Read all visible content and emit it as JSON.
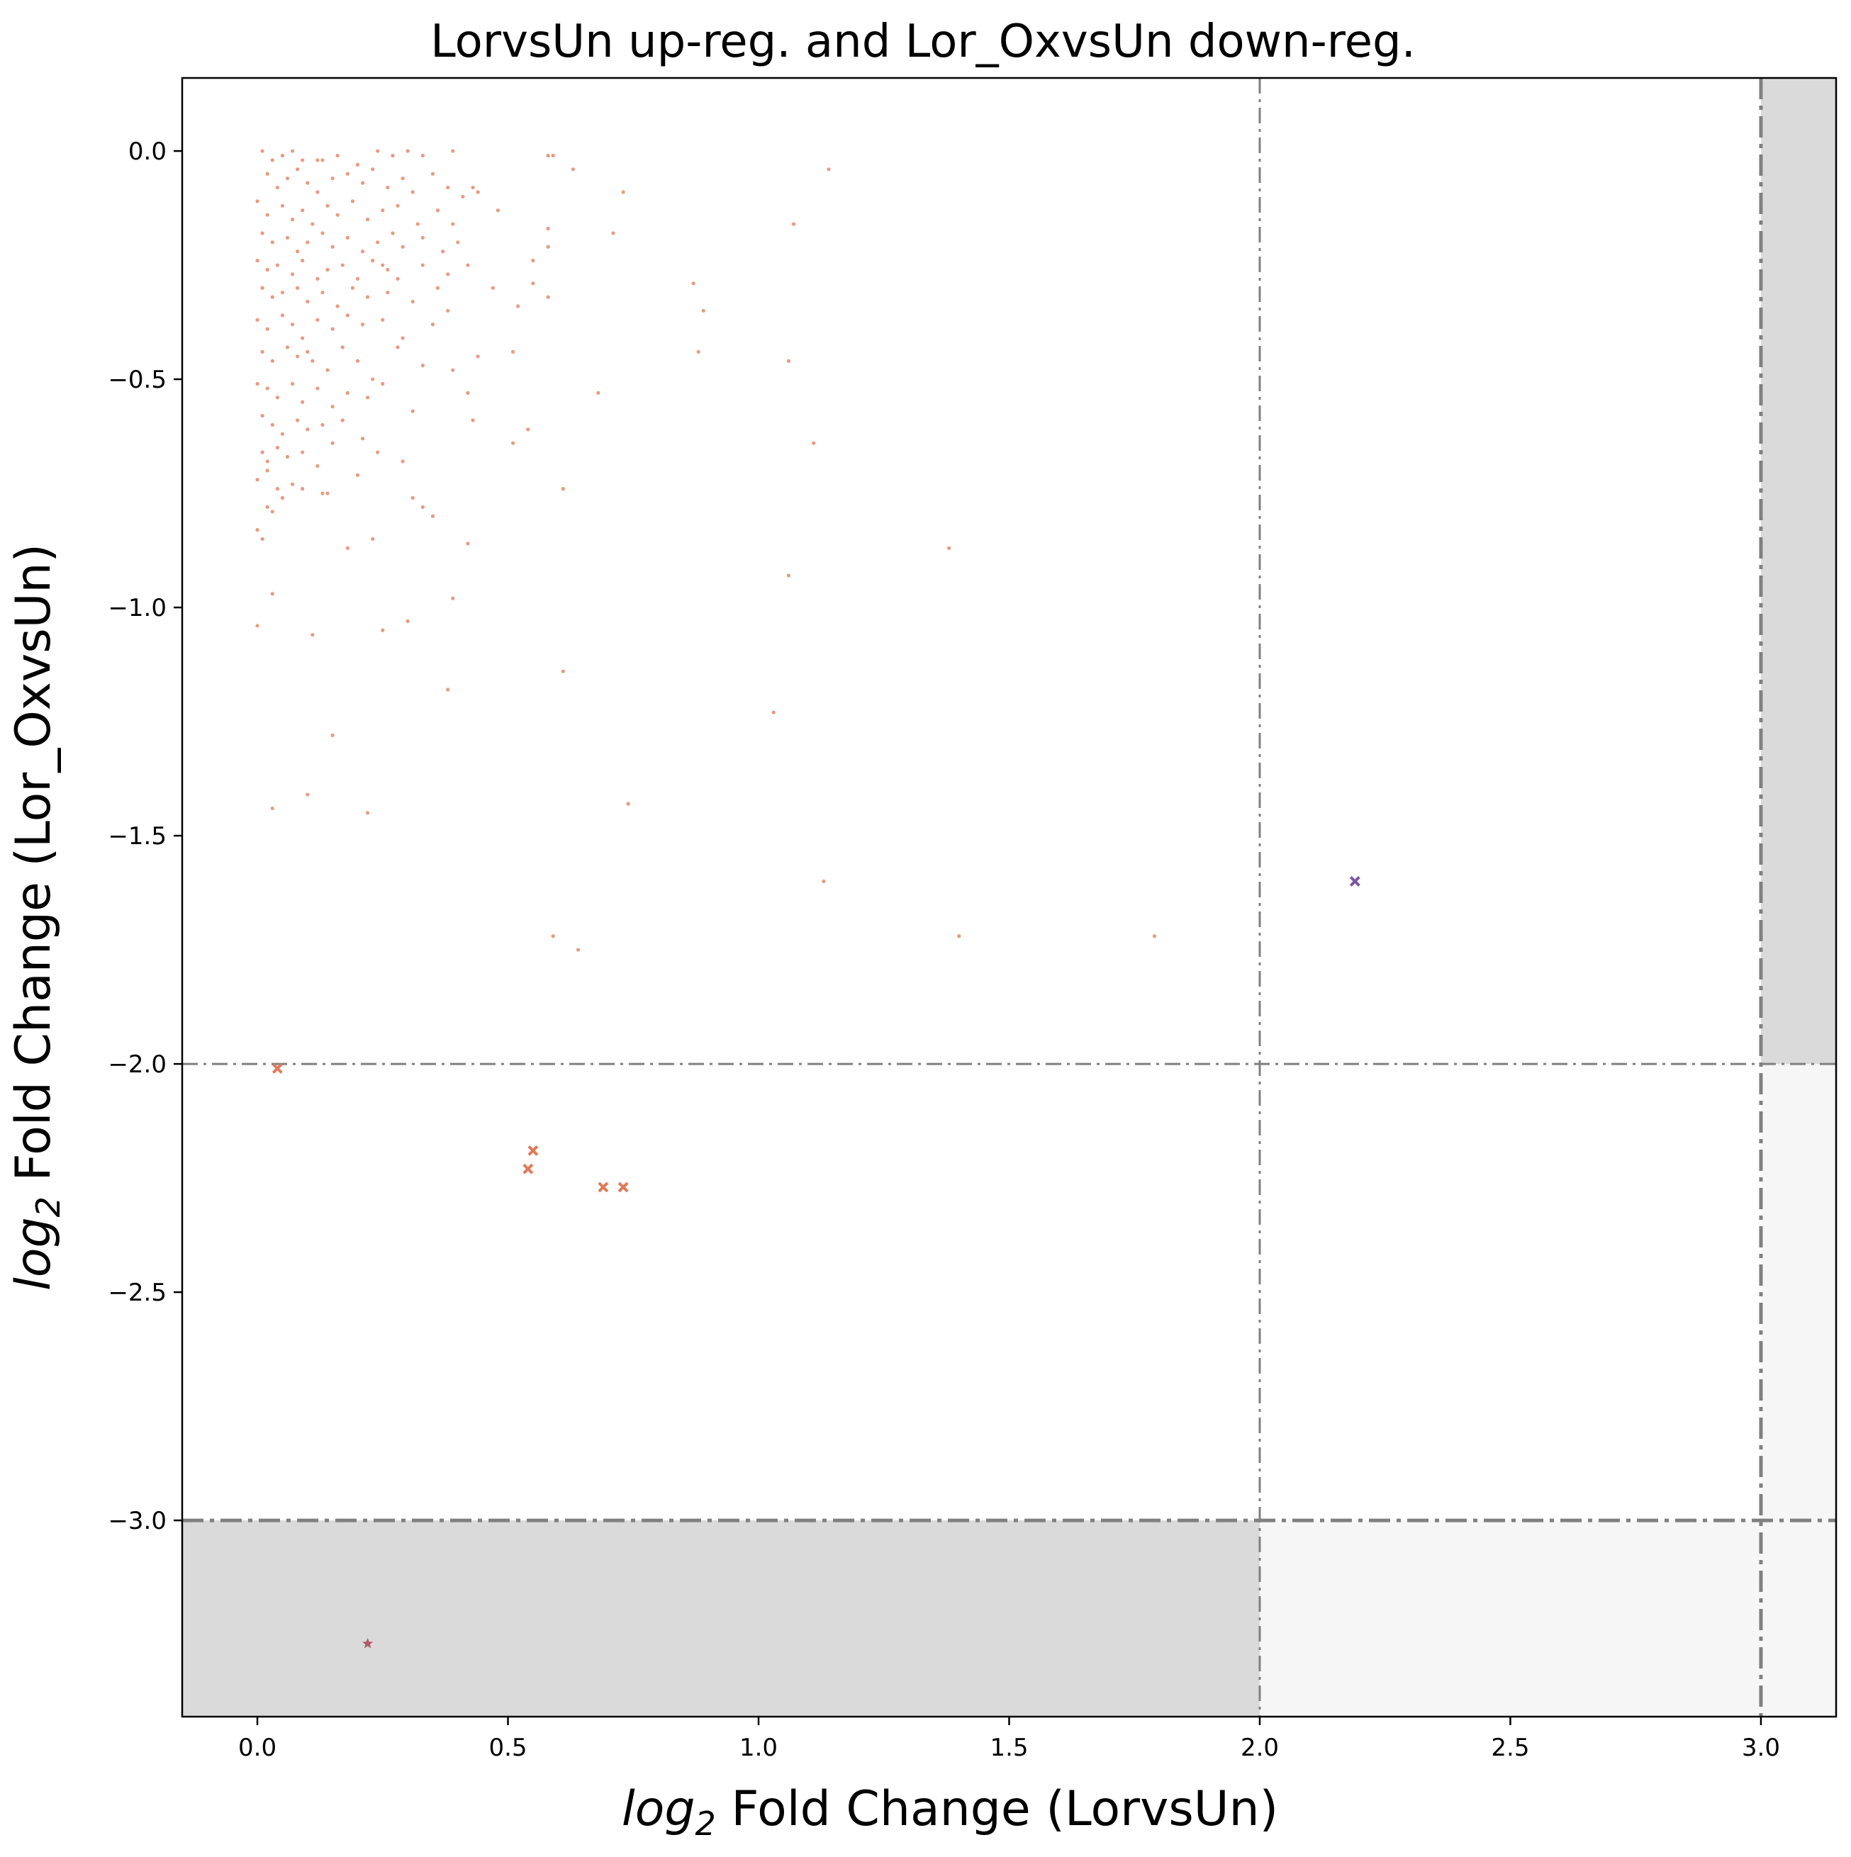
{
  "chart_data": {
    "type": "scatter",
    "title": "LorvsUn up-reg. and Lor_OxvsUn down-reg.",
    "xlabel": {
      "prefix": "log",
      "sub": "2",
      "suffix": " Fold Change (LorvsUn)"
    },
    "ylabel": {
      "prefix": "log",
      "sub": "2",
      "suffix": " Fold Change (Lor_OxvsUn)"
    },
    "xlim": [
      -0.15,
      3.15
    ],
    "ylim": [
      -3.43,
      0.16
    ],
    "xticks": [
      0.0,
      0.5,
      1.0,
      1.5,
      2.0,
      2.5,
      3.0
    ],
    "xtick_labels": [
      "0.0",
      "0.5",
      "1.0",
      "1.5",
      "2.0",
      "2.5",
      "3.0"
    ],
    "yticks": [
      0.0,
      -0.5,
      -1.0,
      -1.5,
      -2.0,
      -2.5,
      -3.0
    ],
    "ytick_labels": [
      "0.0",
      "−0.5",
      "−1.0",
      "−1.5",
      "−2.0",
      "−2.5",
      "−3.0"
    ],
    "grid": false,
    "legend": "none",
    "shaded_regions": [
      {
        "x": [
          -0.15,
          2.0
        ],
        "y": [
          -3.43,
          -3.0
        ],
        "color": "#dadada"
      },
      {
        "x": [
          2.0,
          3.0
        ],
        "y": [
          -3.43,
          -3.0
        ],
        "color": "#f6f6f6"
      },
      {
        "x": [
          3.0,
          3.15
        ],
        "y": [
          -3.43,
          -2.0
        ],
        "color": "#f6f6f6"
      },
      {
        "x": [
          3.0,
          3.15
        ],
        "y": [
          -2.0,
          0.16
        ],
        "color": "#dadada"
      }
    ],
    "threshold_lines": [
      {
        "orientation": "vertical",
        "value": 2.0,
        "style": "thin"
      },
      {
        "orientation": "vertical",
        "value": 3.0,
        "style": "thick"
      },
      {
        "orientation": "horizontal",
        "value": -2.0,
        "style": "thin"
      },
      {
        "orientation": "horizontal",
        "value": -3.0,
        "style": "thick"
      }
    ],
    "line_color": "#808080",
    "series": [
      {
        "marker": "dot",
        "color": "#e28a6c",
        "points": [
          [
            0.01,
            0.0
          ],
          [
            0.03,
            -0.02
          ],
          [
            0.05,
            -0.01
          ],
          [
            0.07,
            0.0
          ],
          [
            0.09,
            -0.02
          ],
          [
            0.12,
            -0.02
          ],
          [
            0.13,
            -0.02
          ],
          [
            0.16,
            -0.01
          ],
          [
            0.2,
            -0.03
          ],
          [
            0.24,
            0.0
          ],
          [
            0.27,
            -0.01
          ],
          [
            0.3,
            0.0
          ],
          [
            0.33,
            -0.01
          ],
          [
            0.39,
            0.0
          ],
          [
            0.58,
            -0.01
          ],
          [
            0.59,
            -0.01
          ],
          [
            0.63,
            -0.04
          ],
          [
            1.14,
            -0.04
          ],
          [
            0.02,
            -0.05
          ],
          [
            0.04,
            -0.08
          ],
          [
            0.06,
            -0.06
          ],
          [
            0.08,
            -0.04
          ],
          [
            0.1,
            -0.07
          ],
          [
            0.12,
            -0.09
          ],
          [
            0.15,
            -0.06
          ],
          [
            0.18,
            -0.05
          ],
          [
            0.21,
            -0.07
          ],
          [
            0.23,
            -0.04
          ],
          [
            0.26,
            -0.08
          ],
          [
            0.29,
            -0.06
          ],
          [
            0.31,
            -0.09
          ],
          [
            0.35,
            -0.05
          ],
          [
            0.38,
            -0.08
          ],
          [
            0.41,
            -0.1
          ],
          [
            0.43,
            -0.08
          ],
          [
            0.44,
            -0.09
          ],
          [
            0.73,
            -0.09
          ],
          [
            0.0,
            -0.11
          ],
          [
            0.02,
            -0.14
          ],
          [
            0.05,
            -0.12
          ],
          [
            0.07,
            -0.15
          ],
          [
            0.09,
            -0.13
          ],
          [
            0.11,
            -0.16
          ],
          [
            0.14,
            -0.12
          ],
          [
            0.16,
            -0.14
          ],
          [
            0.19,
            -0.11
          ],
          [
            0.22,
            -0.15
          ],
          [
            0.25,
            -0.13
          ],
          [
            0.28,
            -0.12
          ],
          [
            0.32,
            -0.16
          ],
          [
            0.36,
            -0.13
          ],
          [
            0.39,
            -0.16
          ],
          [
            0.48,
            -0.13
          ],
          [
            0.58,
            -0.17
          ],
          [
            1.07,
            -0.16
          ],
          [
            0.01,
            -0.18
          ],
          [
            0.03,
            -0.2
          ],
          [
            0.06,
            -0.19
          ],
          [
            0.08,
            -0.22
          ],
          [
            0.1,
            -0.2
          ],
          [
            0.13,
            -0.18
          ],
          [
            0.15,
            -0.21
          ],
          [
            0.18,
            -0.19
          ],
          [
            0.21,
            -0.22
          ],
          [
            0.24,
            -0.2
          ],
          [
            0.27,
            -0.18
          ],
          [
            0.29,
            -0.21
          ],
          [
            0.33,
            -0.19
          ],
          [
            0.37,
            -0.22
          ],
          [
            0.4,
            -0.2
          ],
          [
            0.58,
            -0.21
          ],
          [
            0.71,
            -0.18
          ],
          [
            0.0,
            -0.24
          ],
          [
            0.02,
            -0.26
          ],
          [
            0.04,
            -0.25
          ],
          [
            0.07,
            -0.27
          ],
          [
            0.09,
            -0.24
          ],
          [
            0.12,
            -0.28
          ],
          [
            0.14,
            -0.26
          ],
          [
            0.17,
            -0.25
          ],
          [
            0.2,
            -0.28
          ],
          [
            0.23,
            -0.24
          ],
          [
            0.25,
            -0.25
          ],
          [
            0.26,
            -0.26
          ],
          [
            0.28,
            -0.28
          ],
          [
            0.33,
            -0.25
          ],
          [
            0.38,
            -0.27
          ],
          [
            0.42,
            -0.25
          ],
          [
            0.55,
            -0.24
          ],
          [
            0.01,
            -0.3
          ],
          [
            0.03,
            -0.32
          ],
          [
            0.05,
            -0.31
          ],
          [
            0.08,
            -0.3
          ],
          [
            0.1,
            -0.33
          ],
          [
            0.13,
            -0.31
          ],
          [
            0.16,
            -0.34
          ],
          [
            0.19,
            -0.3
          ],
          [
            0.22,
            -0.32
          ],
          [
            0.26,
            -0.31
          ],
          [
            0.31,
            -0.33
          ],
          [
            0.36,
            -0.3
          ],
          [
            0.47,
            -0.3
          ],
          [
            0.55,
            -0.29
          ],
          [
            0.58,
            -0.32
          ],
          [
            0.87,
            -0.29
          ],
          [
            0.89,
            -0.35
          ],
          [
            0.0,
            -0.37
          ],
          [
            0.02,
            -0.39
          ],
          [
            0.05,
            -0.36
          ],
          [
            0.07,
            -0.38
          ],
          [
            0.09,
            -0.41
          ],
          [
            0.12,
            -0.37
          ],
          [
            0.15,
            -0.39
          ],
          [
            0.18,
            -0.36
          ],
          [
            0.21,
            -0.38
          ],
          [
            0.25,
            -0.37
          ],
          [
            0.29,
            -0.41
          ],
          [
            0.35,
            -0.38
          ],
          [
            0.38,
            -0.35
          ],
          [
            0.52,
            -0.34
          ],
          [
            0.88,
            -0.44
          ],
          [
            0.01,
            -0.44
          ],
          [
            0.03,
            -0.46
          ],
          [
            0.06,
            -0.43
          ],
          [
            0.08,
            -0.45
          ],
          [
            0.1,
            -0.44
          ],
          [
            0.11,
            -0.46
          ],
          [
            0.14,
            -0.48
          ],
          [
            0.17,
            -0.43
          ],
          [
            0.2,
            -0.46
          ],
          [
            0.23,
            -0.5
          ],
          [
            0.28,
            -0.43
          ],
          [
            0.33,
            -0.47
          ],
          [
            0.39,
            -0.48
          ],
          [
            0.44,
            -0.45
          ],
          [
            0.51,
            -0.44
          ],
          [
            1.06,
            -0.46
          ],
          [
            0.0,
            -0.51
          ],
          [
            0.02,
            -0.52
          ],
          [
            0.04,
            -0.54
          ],
          [
            0.07,
            -0.51
          ],
          [
            0.09,
            -0.55
          ],
          [
            0.12,
            -0.52
          ],
          [
            0.15,
            -0.56
          ],
          [
            0.18,
            -0.53
          ],
          [
            0.22,
            -0.54
          ],
          [
            0.25,
            -0.51
          ],
          [
            0.31,
            -0.57
          ],
          [
            0.42,
            -0.53
          ],
          [
            0.68,
            -0.53
          ],
          [
            0.01,
            -0.58
          ],
          [
            0.03,
            -0.6
          ],
          [
            0.05,
            -0.62
          ],
          [
            0.08,
            -0.59
          ],
          [
            0.1,
            -0.61
          ],
          [
            0.13,
            -0.6
          ],
          [
            0.17,
            -0.59
          ],
          [
            0.21,
            -0.63
          ],
          [
            0.43,
            -0.59
          ],
          [
            0.54,
            -0.61
          ],
          [
            0.51,
            -0.64
          ],
          [
            0.01,
            -0.66
          ],
          [
            0.02,
            -0.68
          ],
          [
            0.04,
            -0.65
          ],
          [
            0.06,
            -0.67
          ],
          [
            0.09,
            -0.66
          ],
          [
            0.12,
            -0.69
          ],
          [
            0.15,
            -0.64
          ],
          [
            0.24,
            -0.66
          ],
          [
            0.29,
            -0.68
          ],
          [
            1.11,
            -0.64
          ],
          [
            0.0,
            -0.72
          ],
          [
            0.02,
            -0.7
          ],
          [
            0.04,
            -0.74
          ],
          [
            0.05,
            -0.76
          ],
          [
            0.07,
            -0.73
          ],
          [
            0.09,
            -0.74
          ],
          [
            0.13,
            -0.75
          ],
          [
            0.14,
            -0.75
          ],
          [
            0.2,
            -0.71
          ],
          [
            0.31,
            -0.76
          ],
          [
            0.33,
            -0.78
          ],
          [
            0.61,
            -0.74
          ],
          [
            0.02,
            -0.78
          ],
          [
            0.03,
            -0.79
          ],
          [
            0.0,
            -0.83
          ],
          [
            0.01,
            -0.85
          ],
          [
            0.18,
            -0.87
          ],
          [
            0.23,
            -0.85
          ],
          [
            0.35,
            -0.8
          ],
          [
            0.42,
            -0.86
          ],
          [
            1.06,
            -0.93
          ],
          [
            1.38,
            -0.87
          ],
          [
            0.03,
            -0.97
          ],
          [
            0.0,
            -1.04
          ],
          [
            0.11,
            -1.06
          ],
          [
            0.25,
            -1.05
          ],
          [
            0.3,
            -1.03
          ],
          [
            0.39,
            -0.98
          ],
          [
            0.61,
            -1.14
          ],
          [
            1.03,
            -1.23
          ],
          [
            0.15,
            -1.28
          ],
          [
            0.38,
            -1.18
          ],
          [
            0.03,
            -1.44
          ],
          [
            0.1,
            -1.41
          ],
          [
            0.22,
            -1.45
          ],
          [
            0.74,
            -1.43
          ],
          [
            1.13,
            -1.6
          ],
          [
            0.59,
            -1.72
          ],
          [
            0.64,
            -1.75
          ],
          [
            1.4,
            -1.72
          ],
          [
            1.79,
            -1.72
          ]
        ]
      },
      {
        "marker": "x",
        "color": "#e07a58",
        "points": [
          [
            0.04,
            -2.01
          ],
          [
            0.55,
            -2.19
          ],
          [
            0.54,
            -2.23
          ],
          [
            0.69,
            -2.27
          ],
          [
            0.73,
            -2.27
          ]
        ]
      },
      {
        "marker": "x",
        "color": "#7b55a0",
        "points": [
          [
            2.19,
            -1.6
          ]
        ]
      },
      {
        "marker": "star",
        "color": "#b05a6a",
        "points": [
          [
            0.22,
            -3.27
          ]
        ]
      }
    ]
  }
}
